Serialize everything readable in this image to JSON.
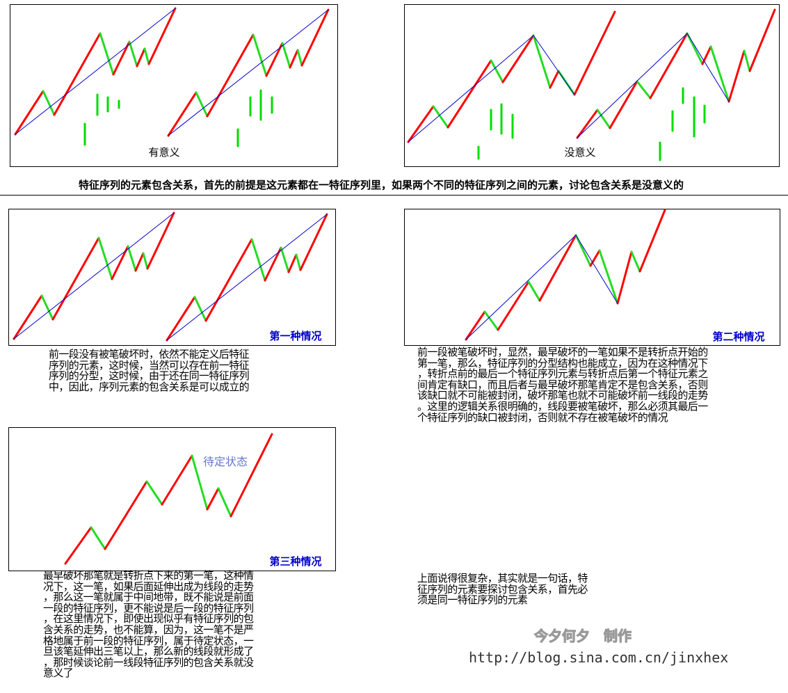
{
  "panels": [
    {
      "label": "有意义"
    },
    {
      "label": "没意义"
    },
    {
      "label": "第一种情况"
    },
    {
      "label": "第二种情况"
    },
    {
      "label": "第三种情况",
      "note": "待定状态"
    }
  ],
  "caption": "特征序列的元素包含关系，首先的前提是这元素都在一特征序列里，如果两个不同的特征序列之间的元素，讨论包含关系是没意义的",
  "paragraphs": [
    {
      "lines": [
        "前一段没有被笔破坏时，依然不能定义后特征",
        "序列的元素，这时候，当然可以存在前一特征",
        "序列的分型，这时候，由于还在同一特征序列",
        "中，因此，序列元素的包含关系是可以成立的"
      ]
    },
    {
      "lines": [
        "前一段被笔破坏时，显然，最早破坏的一笔如果不是转折点开始的",
        "第一笔，那么，特征序列的分型结构也能成立，因为在这种情况下",
        "，转折点前的最后一个特征序列元素与转折点后第一个特征元素之",
        "间肯定有缺口，而且后者与最早破坏那笔肯定不是包含关系，否则",
        "该缺口就不可能被封闭，破坏那笔也就不可能破坏前一线段的走势",
        "。这里的逻辑关系很明确的，线段要被笔破坏，那么必须其最后一",
        "个特征序列的缺口被封闭，否则就不存在被笔破坏的情况"
      ]
    },
    {
      "lines": [
        "最早破坏那笔就是转折点下来的第一笔，这种情",
        "况下，这一笔，如果后面延伸出成为线段的走势",
        "，那么这一笔就属于中间地带，既不能说是前面",
        "一段的特征序列，更不能说是后一段的特征序列",
        "，在这里情况下，即使出现似乎有特征序列的包",
        "含关系的走势，也不能算，因为，这一笔不是严",
        "格地属于前一段的特征序列，属于待定状态，一",
        "旦该笔延伸出三笔以上，那么新的线段就形成了",
        "，那时候谈论前一线段特征序列的包含关系就没",
        "意义了"
      ]
    },
    {
      "lines": [
        "上面说得很复杂，其实就是一句话，特",
        "征序列的元素要探讨包含关系，首先必",
        "须是同一特征序列的元素"
      ]
    }
  ],
  "watermark": "今夕何夕　制作",
  "url": "http://blog.sina.com.cn/jinxhex"
}
